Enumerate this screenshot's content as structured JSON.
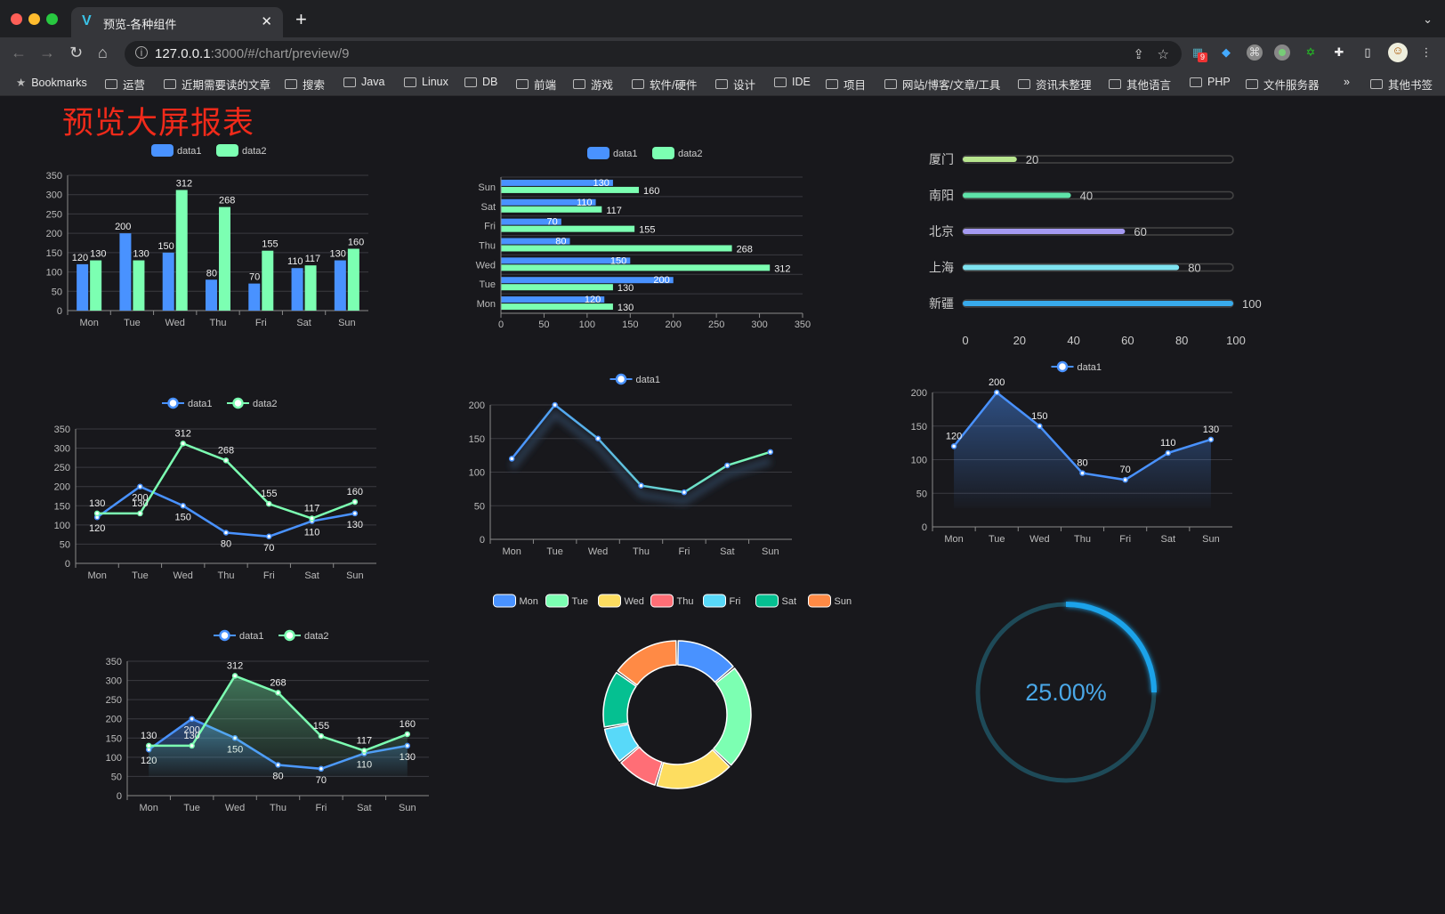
{
  "browser": {
    "tab_title": "预览-各种组件",
    "url_host": "127.0.0.1",
    "url_path": ":3000/#/chart/preview/9",
    "extension_badge": "9",
    "bookmarks": [
      "Bookmarks",
      "运营",
      "近期需要读的文章",
      "搜索",
      "Java",
      "Linux",
      "DB",
      "前端",
      "游戏",
      "软件/硬件",
      "设计",
      "IDE",
      "项目",
      "网站/博客/文章/工具",
      "资讯未整理",
      "其他语言",
      "PHP",
      "文件服务器"
    ],
    "overflow": "»",
    "other_bookmarks": "其他书签"
  },
  "page": {
    "title": "预览大屏报表"
  },
  "colors": {
    "data1": "#4992ff",
    "data2": "#7cffb2",
    "title": "#f02a1a",
    "gauge": "#1aa3ea",
    "gauge_track": "#1e4a58"
  },
  "chart_data": [
    {
      "type": "bar",
      "categories": [
        "Mon",
        "Tue",
        "Wed",
        "Thu",
        "Fri",
        "Sat",
        "Sun"
      ],
      "series": [
        {
          "name": "data1",
          "values": [
            120,
            200,
            150,
            80,
            70,
            110,
            130
          ]
        },
        {
          "name": "data2",
          "values": [
            130,
            130,
            312,
            268,
            155,
            117,
            160
          ]
        }
      ],
      "ylim": [
        0,
        350
      ],
      "yticks": [
        0,
        50,
        100,
        150,
        200,
        250,
        300,
        350
      ],
      "grid": true,
      "legend": "top"
    },
    {
      "type": "bar",
      "orientation": "horizontal",
      "categories": [
        "Mon",
        "Tue",
        "Wed",
        "Thu",
        "Fri",
        "Sat",
        "Sun"
      ],
      "series": [
        {
          "name": "data1",
          "values": [
            120,
            200,
            150,
            80,
            70,
            110,
            130
          ]
        },
        {
          "name": "data2",
          "values": [
            130,
            130,
            312,
            268,
            155,
            117,
            160
          ]
        }
      ],
      "xlim": [
        0,
        350
      ],
      "xticks": [
        0,
        50,
        100,
        150,
        200,
        250,
        300,
        350
      ],
      "grid": true,
      "legend": "top"
    },
    {
      "type": "bar",
      "orientation": "horizontal",
      "style": "progress",
      "categories": [
        "厦门",
        "南阳",
        "北京",
        "上海",
        "新疆"
      ],
      "values": [
        20,
        40,
        60,
        80,
        100
      ],
      "colors": [
        "#b8e68f",
        "#5fe3a9",
        "#a59af2",
        "#7ee3f0",
        "#38aaeb"
      ],
      "xlim": [
        0,
        100
      ],
      "xticks": [
        0,
        20,
        40,
        60,
        80,
        100
      ]
    },
    {
      "type": "line",
      "categories": [
        "Mon",
        "Tue",
        "Wed",
        "Thu",
        "Fri",
        "Sat",
        "Sun"
      ],
      "series": [
        {
          "name": "data1",
          "values": [
            120,
            200,
            150,
            80,
            70,
            110,
            130
          ]
        },
        {
          "name": "data2",
          "values": [
            130,
            130,
            312,
            268,
            155,
            117,
            160
          ]
        }
      ],
      "ylim": [
        0,
        350
      ],
      "yticks": [
        0,
        50,
        100,
        150,
        200,
        250,
        300,
        350
      ],
      "grid": true,
      "legend": "top"
    },
    {
      "type": "line",
      "categories": [
        "Mon",
        "Tue",
        "Wed",
        "Thu",
        "Fri",
        "Sat",
        "Sun"
      ],
      "series": [
        {
          "name": "data1",
          "values": [
            120,
            200,
            150,
            80,
            70,
            110,
            130
          ]
        }
      ],
      "ylim": [
        0,
        200
      ],
      "yticks": [
        0,
        50,
        100,
        150,
        200
      ],
      "grid": true,
      "legend": "top",
      "gradient_line": true
    },
    {
      "type": "area",
      "categories": [
        "Mon",
        "Tue",
        "Wed",
        "Thu",
        "Fri",
        "Sat",
        "Sun"
      ],
      "series": [
        {
          "name": "data1",
          "values": [
            120,
            200,
            150,
            80,
            70,
            110,
            130
          ]
        }
      ],
      "ylim": [
        0,
        200
      ],
      "yticks": [
        0,
        50,
        100,
        150,
        200
      ],
      "grid": true,
      "legend": "top"
    },
    {
      "type": "area",
      "categories": [
        "Mon",
        "Tue",
        "Wed",
        "Thu",
        "Fri",
        "Sat",
        "Sun"
      ],
      "series": [
        {
          "name": "data1",
          "values": [
            120,
            200,
            150,
            80,
            70,
            110,
            130
          ]
        },
        {
          "name": "data2",
          "values": [
            130,
            130,
            312,
            268,
            155,
            117,
            160
          ]
        }
      ],
      "ylim": [
        0,
        350
      ],
      "yticks": [
        0,
        50,
        100,
        150,
        200,
        250,
        300,
        350
      ],
      "grid": true,
      "legend": "top"
    },
    {
      "type": "pie",
      "style": "donut",
      "categories": [
        "Mon",
        "Tue",
        "Wed",
        "Thu",
        "Fri",
        "Sat",
        "Sun"
      ],
      "values": [
        120,
        200,
        150,
        80,
        70,
        110,
        130
      ],
      "colors": [
        "#4992ff",
        "#7cffb2",
        "#fddd60",
        "#ff6e76",
        "#58d9f9",
        "#05c091",
        "#ff8a45"
      ],
      "legend": "top"
    },
    {
      "type": "gauge",
      "value": 25,
      "label": "25.00%"
    }
  ]
}
